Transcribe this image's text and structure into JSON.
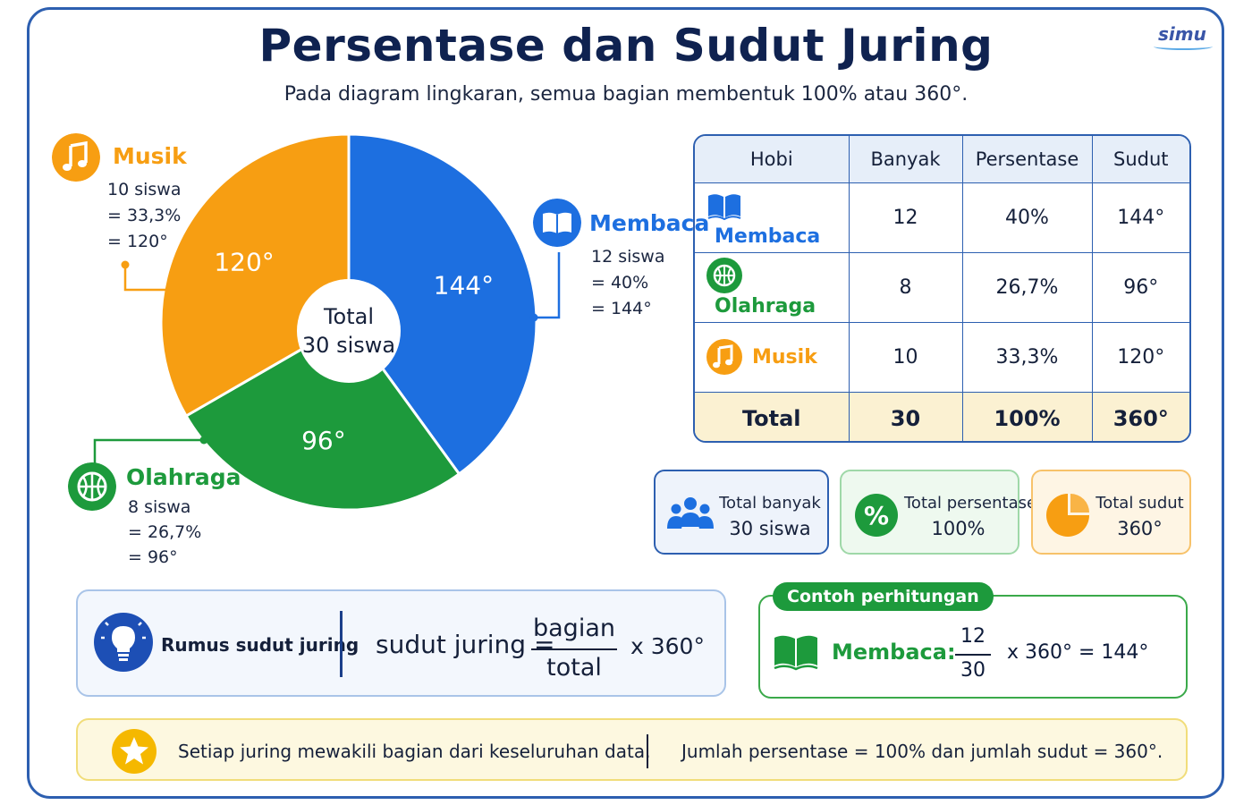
{
  "header": {
    "title": "Persentase dan Sudut Juring",
    "subtitle": "Pada diagram lingkaran, semua bagian membentuk 100% atau 360°.",
    "logo": "simu"
  },
  "colors": {
    "membaca": "#1d6fe0",
    "olahraga": "#1d9a3c",
    "musik": "#f79e12",
    "border": "#2d5fb0"
  },
  "chart_data": {
    "type": "pie",
    "center_label": [
      "Total",
      "30 siswa"
    ],
    "slices": [
      {
        "name": "Membaca",
        "value": 12,
        "percent": 40,
        "angle": 144,
        "label": "144°",
        "color": "#1d6fe0"
      },
      {
        "name": "Olahraga",
        "value": 8,
        "percent": 26.7,
        "angle": 96,
        "label": "96°",
        "color": "#1d9a3c"
      },
      {
        "name": "Musik",
        "value": 10,
        "percent": 33.3,
        "angle": 120,
        "label": "120°",
        "color": "#f79e12"
      }
    ]
  },
  "callouts": {
    "musik": {
      "name": "Musik",
      "lines": [
        "10 siswa",
        "= 33,3%",
        "= 120°"
      ],
      "icon": "music-note-icon"
    },
    "membaca": {
      "name": "Membaca",
      "lines": [
        "12 siswa",
        "= 40%",
        "= 144°"
      ],
      "icon": "book-icon"
    },
    "olahraga": {
      "name": "Olahraga",
      "lines": [
        "8 siswa",
        "= 26,7%",
        "= 96°"
      ],
      "icon": "basketball-icon"
    }
  },
  "table": {
    "headers": [
      "Hobi",
      "Banyak",
      "Persentase",
      "Sudut"
    ],
    "rows": [
      {
        "hobi": "Membaca",
        "banyak": "12",
        "persentase": "40%",
        "sudut": "144°"
      },
      {
        "hobi": "Olahraga",
        "banyak": "8",
        "persentase": "26,7%",
        "sudut": "96°"
      },
      {
        "hobi": "Musik",
        "banyak": "10",
        "persentase": "33,3%",
        "sudut": "120°"
      }
    ],
    "total": {
      "label": "Total",
      "banyak": "30",
      "persentase": "100%",
      "sudut": "360°"
    }
  },
  "cards": [
    {
      "label": "Total banyak",
      "value": "30 siswa",
      "icon": "people-icon"
    },
    {
      "label": "Total persentase",
      "value": "100%",
      "icon": "percent-icon"
    },
    {
      "label": "Total sudut",
      "value": "360°",
      "icon": "pie-chart-icon"
    }
  ],
  "formula": {
    "label": "Rumus sudut juring",
    "lhs": "sudut juring =",
    "numerator": "bagian",
    "denominator": "total",
    "rhs": "x 360°"
  },
  "example": {
    "tag": "Contoh perhitungan",
    "label": "Membaca:",
    "numerator": "12",
    "denominator": "30",
    "rhs": "x 360° = 144°"
  },
  "note": {
    "left": "Setiap juring mewakili bagian dari keseluruhan data.",
    "right": "Jumlah persentase = 100% dan jumlah sudut = 360°."
  }
}
